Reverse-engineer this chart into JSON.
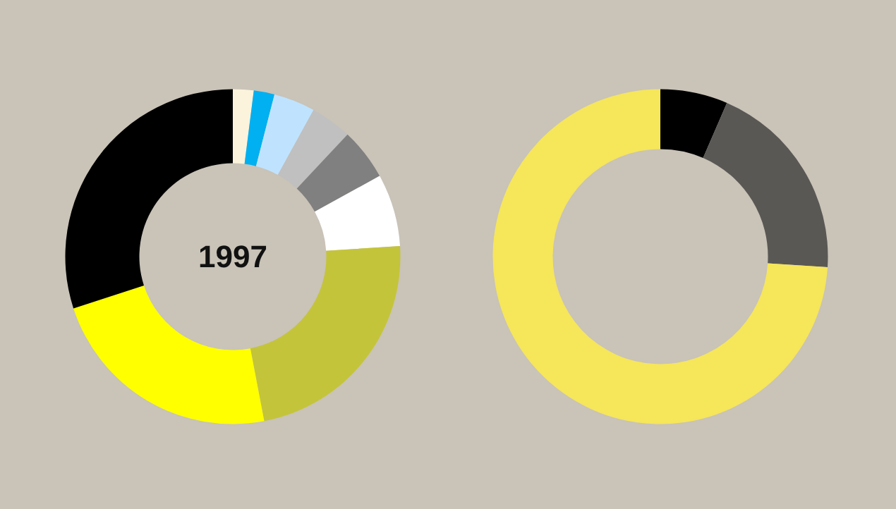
{
  "chart_data": [
    {
      "type": "donut",
      "title": "1997",
      "categories": [
        null,
        null,
        null,
        null,
        null,
        null,
        null,
        null,
        null
      ],
      "values": [
        2,
        2,
        4,
        4,
        5,
        7,
        23,
        23,
        30
      ],
      "colors": [
        "#fbf3dc",
        "#00b0f0",
        "#bfe3ff",
        "#c0c0c0",
        "#808080",
        "#ffffff",
        "#c4c43a",
        "#ffff00",
        "#000000"
      ]
    },
    {
      "type": "donut",
      "categories": [
        null,
        null,
        null
      ],
      "values": [
        6.5,
        19.5,
        74
      ],
      "colors": [
        "#000000",
        "#5a5855",
        "#f6e65a"
      ]
    }
  ]
}
